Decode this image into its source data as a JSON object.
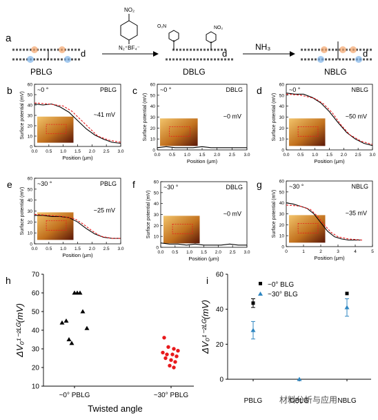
{
  "scheme": {
    "panel_letter": "a",
    "states": [
      "PBLG",
      "DBLG",
      "NBLG"
    ],
    "reagent1": "N₂⁺BF₄⁻",
    "reagent1_group": "NO₂",
    "reagent2": "NH₃",
    "spacing_label": "d",
    "nitro_label": "NO₂",
    "dbl_left_label": "O₂N"
  },
  "kpfm_axes": {
    "ylabel": "Surface potential (mV)",
    "xlabel": "Position (μm)"
  },
  "chart_data": [
    {
      "id": "b",
      "type": "line",
      "angle": "~0 °",
      "sample": "PBLG",
      "annotation": "~41 mV",
      "ylim": [
        0,
        60
      ],
      "yticks": [
        0,
        10,
        20,
        30,
        40,
        50,
        60
      ],
      "xlim": [
        0,
        3
      ],
      "xticks": [
        "0.0",
        "0.5",
        "1.0",
        "1.5",
        "2.0",
        "2.5",
        "3.0"
      ],
      "series": [
        {
          "x": [
            0,
            0.3,
            0.6,
            0.9,
            1.2,
            1.5,
            1.8,
            2.1,
            2.4,
            2.7,
            3.0
          ],
          "y": [
            41,
            40,
            41,
            38,
            33,
            25,
            17,
            11,
            7,
            4,
            3
          ]
        },
        {
          "x": [
            0,
            0.5,
            1.0,
            1.3,
            1.6,
            1.9,
            2.2,
            2.6,
            3.0
          ],
          "y": [
            42,
            41,
            39,
            34,
            26,
            18,
            10,
            6,
            4
          ]
        }
      ]
    },
    {
      "id": "c",
      "type": "line",
      "angle": "~0 °",
      "sample": "DBLG",
      "annotation": "~0 mV",
      "ylim": [
        0,
        60
      ],
      "yticks": [
        0,
        10,
        20,
        30,
        40,
        50,
        60
      ],
      "xlim": [
        0,
        3
      ],
      "xticks": [
        "0.0",
        "0.5",
        "1.0",
        "1.5",
        "2.0",
        "2.5",
        "3.0"
      ],
      "series": [
        {
          "x": [
            0,
            0.3,
            0.6,
            0.9,
            1.2,
            1.5,
            1.8,
            2.1,
            2.4,
            2.7,
            3.0
          ],
          "y": [
            2,
            3,
            2,
            2,
            2,
            3,
            2,
            2,
            2,
            2,
            2
          ]
        }
      ]
    },
    {
      "id": "d",
      "type": "line",
      "angle": "~0 °",
      "sample": "NBLG",
      "annotation": "~50 mV",
      "ylim": [
        0,
        60
      ],
      "yticks": [
        0,
        10,
        20,
        30,
        40,
        50,
        60
      ],
      "xlim": [
        0,
        3
      ],
      "xticks": [
        "0.0",
        "0.5",
        "1.0",
        "1.5",
        "2.0",
        "2.5",
        "3.0"
      ],
      "series": [
        {
          "x": [
            0,
            0.3,
            0.6,
            0.9,
            1.2,
            1.5,
            1.8,
            2.1,
            2.4,
            2.7,
            3.0
          ],
          "y": [
            52,
            51,
            51,
            48,
            43,
            35,
            25,
            16,
            10,
            6,
            4
          ]
        },
        {
          "x": [
            0,
            0.5,
            1.0,
            1.3,
            1.6,
            1.9,
            2.2,
            2.6,
            3.0
          ],
          "y": [
            51,
            50,
            47,
            42,
            34,
            23,
            14,
            8,
            5
          ]
        }
      ]
    },
    {
      "id": "e",
      "type": "line",
      "angle": "~30 °",
      "sample": "PBLG",
      "annotation": "~25 mV",
      "ylim": [
        0,
        60
      ],
      "yticks": [
        0,
        10,
        20,
        30,
        40,
        50,
        60
      ],
      "xlim": [
        0,
        3
      ],
      "xticks": [
        "0.0",
        "0.5",
        "1.0",
        "1.5",
        "2.0",
        "2.5",
        "3.0"
      ],
      "series": [
        {
          "x": [
            0,
            0.3,
            0.6,
            0.9,
            1.2,
            1.5,
            1.8,
            2.1,
            2.4,
            2.7,
            3.0
          ],
          "y": [
            26,
            26,
            25,
            25,
            24,
            20,
            14,
            9,
            6,
            5,
            5
          ]
        },
        {
          "x": [
            0,
            0.5,
            1.0,
            1.4,
            1.7,
            2.0,
            2.3,
            2.7,
            3.0
          ],
          "y": [
            27,
            26,
            25,
            23,
            18,
            12,
            7,
            5,
            5
          ]
        }
      ]
    },
    {
      "id": "f",
      "type": "line",
      "angle": "~30 °",
      "sample": "DBLG",
      "annotation": "~0 mV",
      "ylim": [
        0,
        60
      ],
      "yticks": [
        0,
        10,
        20,
        30,
        40,
        50,
        60
      ],
      "xlim": [
        0,
        3
      ],
      "xticks": [
        "0.0",
        "0.5",
        "1.0",
        "1.5",
        "2.0",
        "2.5",
        "3.0"
      ],
      "series": [
        {
          "x": [
            0,
            0.3,
            0.6,
            0.9,
            1.2,
            1.5,
            1.8,
            2.1,
            2.4,
            2.7,
            3.0
          ],
          "y": [
            4,
            3,
            3,
            2,
            3,
            2,
            2,
            2,
            3,
            2,
            2
          ]
        }
      ]
    },
    {
      "id": "g",
      "type": "line",
      "angle": "~30 °",
      "sample": "NBLG",
      "annotation": "~35 mV",
      "ylim": [
        0,
        60
      ],
      "yticks": [
        0,
        10,
        20,
        30,
        40,
        50,
        60
      ],
      "xlim": [
        0,
        5
      ],
      "xticks": [
        "0",
        "1",
        "2",
        "3",
        "4",
        "5"
      ],
      "series": [
        {
          "x": [
            0,
            0.4,
            0.8,
            1.2,
            1.6,
            2.0,
            2.4,
            2.8,
            3.2,
            3.6,
            4.0,
            4.4
          ],
          "y": [
            40,
            39,
            37,
            35,
            30,
            22,
            14,
            9,
            7,
            6,
            6,
            6
          ]
        },
        {
          "x": [
            0,
            0.8,
            1.4,
            1.8,
            2.2,
            2.6,
            3.0,
            3.6,
            4.4
          ],
          "y": [
            38,
            37,
            34,
            28,
            20,
            13,
            9,
            7,
            6
          ]
        }
      ]
    },
    {
      "id": "h",
      "type": "scatter",
      "xlabel": "Twisted angle",
      "ylabel": "ΔV₀¹⁻²ᴸᴳ(mV)",
      "ylim": [
        10,
        70
      ],
      "yticks": [
        10,
        20,
        30,
        40,
        50,
        60,
        70
      ],
      "categories": [
        "~0° PBLG",
        "~30° PBLG"
      ],
      "series": [
        {
          "name": "~0° PBLG",
          "marker": "triangle",
          "color": "#000000",
          "x": [
            0,
            0,
            0,
            0,
            0,
            0,
            0,
            0,
            0
          ],
          "y": [
            44,
            45,
            35,
            33,
            60,
            60,
            60,
            50,
            41
          ]
        },
        {
          "name": "~30° PBLG",
          "marker": "circle",
          "color": "#e8191c",
          "x": [
            1,
            1,
            1,
            1,
            1,
            1,
            1,
            1,
            1,
            1,
            1,
            1,
            1
          ],
          "y": [
            36,
            31,
            30,
            29,
            28,
            27,
            27,
            26,
            25,
            24,
            23,
            21,
            20
          ]
        }
      ]
    },
    {
      "id": "i",
      "type": "scatter",
      "ylabel": "ΔV₀¹⁻²ᴸᴳ(mV)",
      "ylim": [
        0,
        60
      ],
      "yticks": [
        0,
        20,
        40,
        60
      ],
      "categories": [
        "PBLG",
        "DBLG",
        "NBLG"
      ],
      "series": [
        {
          "name": "~0° BLG",
          "marker": "square",
          "color": "#000000",
          "y": [
            43.5,
            0,
            49
          ],
          "err": [
            2.5,
            0,
            0
          ]
        },
        {
          "name": "~30° BLG",
          "marker": "triangle",
          "color": "#2e86c1",
          "y": [
            28,
            0,
            41
          ],
          "err": [
            5,
            0,
            5
          ]
        }
      ]
    }
  ],
  "watermark": "材料分析与应用"
}
